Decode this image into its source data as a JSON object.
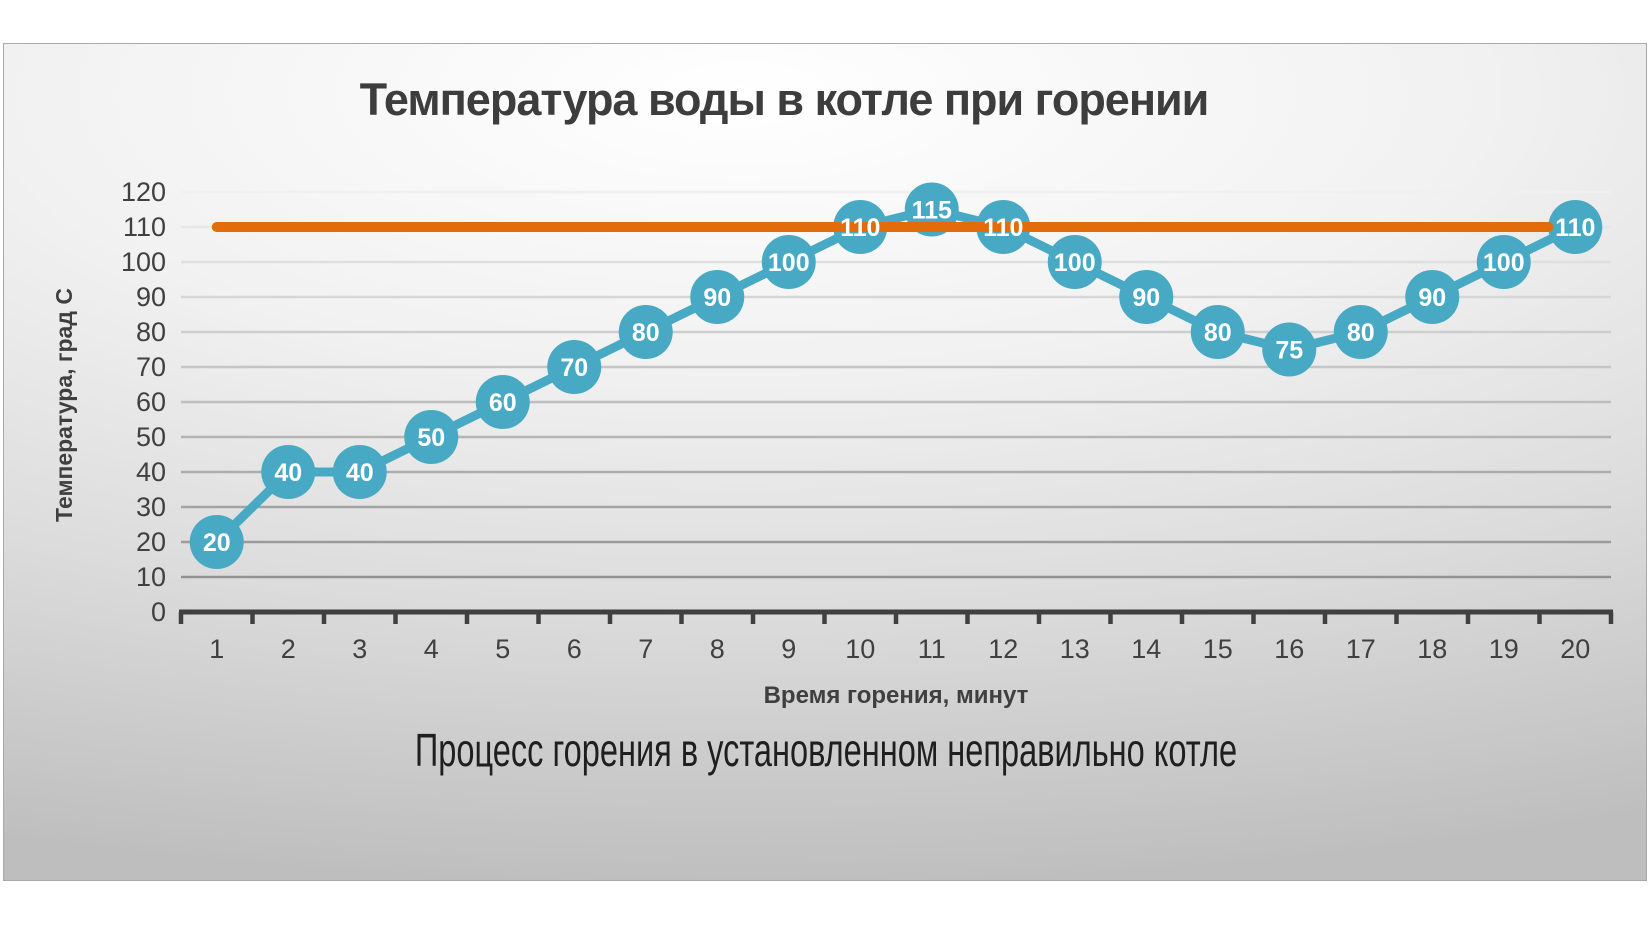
{
  "chart_data": {
    "type": "line",
    "title": "Температура воды в котле при горении",
    "xlabel": "Время горения, минут",
    "ylabel": "Температура, град С",
    "caption": "Процесс горения в установленном неправильно котле",
    "categories": [
      1,
      2,
      3,
      4,
      5,
      6,
      7,
      8,
      9,
      10,
      11,
      12,
      13,
      14,
      15,
      16,
      17,
      18,
      19,
      20
    ],
    "series": [
      {
        "id": "water-temperature",
        "values": [
          20,
          40,
          40,
          50,
          60,
          70,
          80,
          90,
          100,
          110,
          115,
          110,
          100,
          90,
          80,
          75,
          80,
          90,
          100,
          110
        ],
        "color": "#48a9c4",
        "marker": "circle",
        "data_labels": true,
        "data_label_color": "#ffffff"
      },
      {
        "id": "reference-level",
        "constant_value": 110,
        "color": "#e36c0a"
      }
    ],
    "ylim": [
      0,
      120
    ],
    "ytick_step": 10,
    "ytick_labels": [
      "0",
      "10",
      "20",
      "30",
      "40",
      "50",
      "60",
      "70",
      "80",
      "90",
      "100",
      "110",
      "120"
    ],
    "grid": true,
    "legend": false,
    "axis_color": "#404040",
    "gridline_color_top": "#f0f0f0",
    "gridline_color_bottom": "#929292",
    "tick_label_color": "#404040"
  }
}
